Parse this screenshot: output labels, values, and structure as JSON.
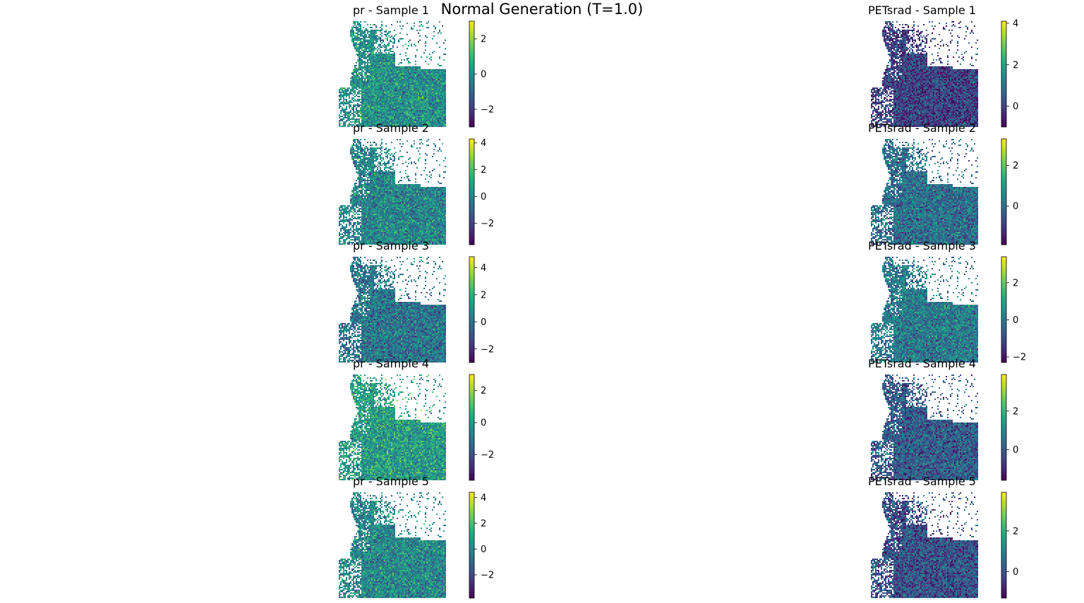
{
  "chart_data": {
    "type": "heatmap",
    "title": "Normal Generation (T=1.0)",
    "colormap": "viridis",
    "panels": [
      {
        "title": "pr - Sample 1",
        "variable": "pr",
        "sample": 1,
        "vmin": -3.0,
        "vmax": 3.0,
        "ticks": [
          2,
          0,
          -2
        ],
        "tick_labels": [
          "2",
          "0",
          "−2"
        ]
      },
      {
        "title": "PETsrad - Sample 1",
        "variable": "PETsrad",
        "sample": 1,
        "vmin": -1.0,
        "vmax": 4.1,
        "ticks": [
          4,
          2,
          0
        ],
        "tick_labels": [
          "4",
          "2",
          "0"
        ]
      },
      {
        "title": "pr - Sample 2",
        "variable": "pr",
        "sample": 2,
        "vmin": -3.6,
        "vmax": 4.3,
        "ticks": [
          4,
          2,
          0,
          -2
        ],
        "tick_labels": [
          "4",
          "2",
          "0",
          "−2"
        ]
      },
      {
        "title": "PETsrad - Sample 2",
        "variable": "PETsrad",
        "sample": 2,
        "vmin": -1.9,
        "vmax": 3.3,
        "ticks": [
          2,
          0
        ],
        "tick_labels": [
          "2",
          "0"
        ]
      },
      {
        "title": "pr - Sample 3",
        "variable": "pr",
        "sample": 3,
        "vmin": -3.0,
        "vmax": 4.8,
        "ticks": [
          4,
          2,
          0,
          -2
        ],
        "tick_labels": [
          "4",
          "2",
          "0",
          "−2"
        ]
      },
      {
        "title": "PETsrad - Sample 3",
        "variable": "PETsrad",
        "sample": 3,
        "vmin": -2.3,
        "vmax": 3.4,
        "ticks": [
          2,
          0,
          -2
        ],
        "tick_labels": [
          "2",
          "0",
          "−2"
        ]
      },
      {
        "title": "pr - Sample 4",
        "variable": "pr",
        "sample": 4,
        "vmin": -3.6,
        "vmax": 3.0,
        "ticks": [
          2,
          0,
          -2
        ],
        "tick_labels": [
          "2",
          "0",
          "−2"
        ]
      },
      {
        "title": "PETsrad - Sample 4",
        "variable": "PETsrad",
        "sample": 4,
        "vmin": -1.6,
        "vmax": 3.9,
        "ticks": [
          2,
          0
        ],
        "tick_labels": [
          "2",
          "0"
        ]
      },
      {
        "title": "pr - Sample 5",
        "variable": "pr",
        "sample": 5,
        "vmin": -3.8,
        "vmax": 4.4,
        "ticks": [
          4,
          2,
          0,
          -2
        ],
        "tick_labels": [
          "4",
          "2",
          "0",
          "−2"
        ]
      },
      {
        "title": "PETsrad - Sample 5",
        "variable": "PETsrad",
        "sample": 5,
        "vmin": -1.3,
        "vmax": 3.9,
        "ticks": [
          2,
          0
        ],
        "tick_labels": [
          "2",
          "0"
        ]
      }
    ]
  }
}
